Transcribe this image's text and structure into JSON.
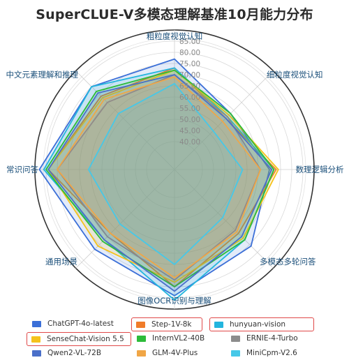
{
  "title": "SuperCLUE-V多模态理解基准10月能力分布",
  "chart_data": {
    "type": "radar",
    "title": "SuperCLUE-V多模态理解基准10月能力分布",
    "axes": [
      "粗粒度视觉认知",
      "细粒度视觉认知",
      "数理逻辑分析",
      "多模态多轮问答",
      "图像OCR识别与理解",
      "通用场景",
      "常识问答",
      "中文元素理解和推理"
    ],
    "rlim": [
      40,
      90
    ],
    "ticks": [
      "40.00",
      "45.00",
      "50.00",
      "55.00",
      "60.00",
      "65.00",
      "70.00",
      "75.00",
      "80.00",
      "85.00"
    ],
    "tick_values": [
      40,
      45,
      50,
      55,
      60,
      65,
      70,
      75,
      80,
      85
    ],
    "grid": true,
    "legend_position": "bottom",
    "series": [
      {
        "name": "ChatGPT-4o-latest",
        "color": "#3b6fd8",
        "highlighted": false,
        "values": [
          77,
          63,
          70,
          76,
          84,
          78,
          88,
          80
        ]
      },
      {
        "name": "Step-1V-8k",
        "color": "#f07c2a",
        "highlighted": true,
        "values": [
          73,
          60,
          73,
          68,
          80,
          68,
          84,
          74
        ]
      },
      {
        "name": "hunyuan-vision",
        "color": "#23b5de",
        "highlighted": true,
        "values": [
          73,
          61,
          72,
          72,
          86,
          72,
          86,
          80
        ]
      },
      {
        "name": "SenseChat-Vision 5.5",
        "color": "#f5c21b",
        "highlighted": true,
        "values": [
          72,
          62,
          74,
          71,
          78,
          76,
          84,
          73
        ]
      },
      {
        "name": "InternVL2-40B",
        "color": "#2dbb3a",
        "highlighted": false,
        "values": [
          72,
          63,
          72,
          72,
          80,
          73,
          85,
          77
        ]
      },
      {
        "name": "ERNIE-4-Turbo",
        "color": "#8c8c8c",
        "highlighted": false,
        "values": [
          70,
          61,
          66,
          66,
          77,
          70,
          80,
          70
        ]
      },
      {
        "name": "Qwen2-VL-72B",
        "color": "#4a6fc9",
        "highlighted": false,
        "values": [
          70,
          60,
          71,
          70,
          82,
          72,
          84,
          76
        ]
      },
      {
        "name": "GLM-4V-Plus",
        "color": "#f0a646",
        "highlighted": false,
        "values": [
          69,
          58,
          66,
          67,
          76,
          68,
          80,
          72
        ]
      },
      {
        "name": "MiniCpm-V2.6",
        "color": "#46c8e8",
        "highlighted": false,
        "values": [
          66,
          52,
          58,
          58,
          70,
          62,
          66,
          63
        ]
      }
    ]
  }
}
